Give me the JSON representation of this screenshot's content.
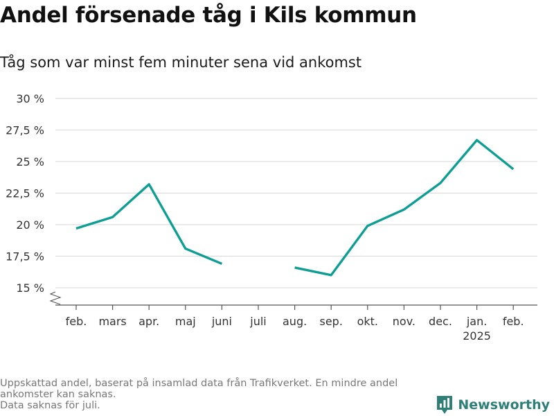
{
  "title": "Andel försenade tåg i Kils kommun",
  "subtitle": "Tåg som var minst fem minuter sena vid ankomst",
  "footnote": {
    "line1": "Uppskattad andel, baserat på insamlad data från Trafikverket. En mindre andel ankomster kan saknas.",
    "line2": "Data saknas för juli."
  },
  "brand": {
    "name": "Newsworthy",
    "icon": "newsworthy-logo-icon",
    "color": "#2f7f79"
  },
  "chart_data": {
    "type": "line",
    "categories": [
      "feb.",
      "mars",
      "apr.",
      "maj",
      "juni",
      "juli",
      "aug.",
      "sep.",
      "okt.",
      "nov.",
      "dec.",
      "jan.",
      "feb."
    ],
    "category_sublabels": [
      "",
      "",
      "",
      "",
      "",
      "",
      "",
      "",
      "",
      "",
      "",
      "2025",
      ""
    ],
    "series": [
      {
        "values": [
          19.7,
          20.6,
          23.2,
          18.1,
          16.9,
          null,
          16.6,
          16.0,
          19.9,
          21.2,
          23.3,
          26.7,
          24.4
        ],
        "color": "#0f9e94"
      }
    ],
    "y_ticks": [
      15,
      17.5,
      20,
      22.5,
      25,
      27.5,
      30
    ],
    "y_tick_labels": [
      "15 %",
      "17,5 %",
      "20 %",
      "22,5 %",
      "25 %",
      "27,5 %",
      "30 %"
    ],
    "ylim": [
      15,
      30
    ],
    "y_axis_break": true,
    "grid": true,
    "xlabel": "",
    "ylabel": ""
  }
}
